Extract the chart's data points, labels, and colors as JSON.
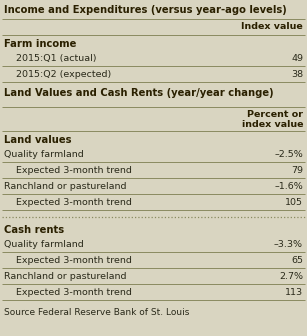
{
  "title1": "Income and Expenditures (versus year-ago levels)",
  "col_header1": "Index value",
  "section1_header": "Farm income",
  "section1_rows": [
    [
      "2015:Q1 (actual)",
      "49"
    ],
    [
      "2015:Q2 (expected)",
      "38"
    ]
  ],
  "title2": "Land Values and Cash Rents (year/year change)",
  "col_header2": "Percent or\nindex value",
  "section2_header1": "Land values",
  "section2_rows1": [
    [
      "Quality farmland",
      "–2.5%"
    ],
    [
      "Expected 3-month trend",
      "79"
    ],
    [
      "Ranchland or pastureland",
      "–1.6%"
    ],
    [
      "Expected 3-month trend",
      "105"
    ]
  ],
  "section2_header2": "Cash rents",
  "section2_rows2": [
    [
      "Quality farmland",
      "–3.3%"
    ],
    [
      "Expected 3-month trend",
      "65"
    ],
    [
      "Ranchland or pastureland",
      "2.7%"
    ],
    [
      "Expected 3-month trend",
      "113"
    ]
  ],
  "source": "Source Federal Reserve Bank of St. Louis",
  "bg_color": "#d9d5c1",
  "text_color": "#2a2a1a",
  "bold_color": "#2a2000",
  "line_color": "#8a8a60",
  "source_color": "#2a2a1a",
  "indent_rows1": [
    false,
    true,
    false,
    true
  ],
  "indent_rows2": [
    false,
    true,
    false,
    true
  ]
}
